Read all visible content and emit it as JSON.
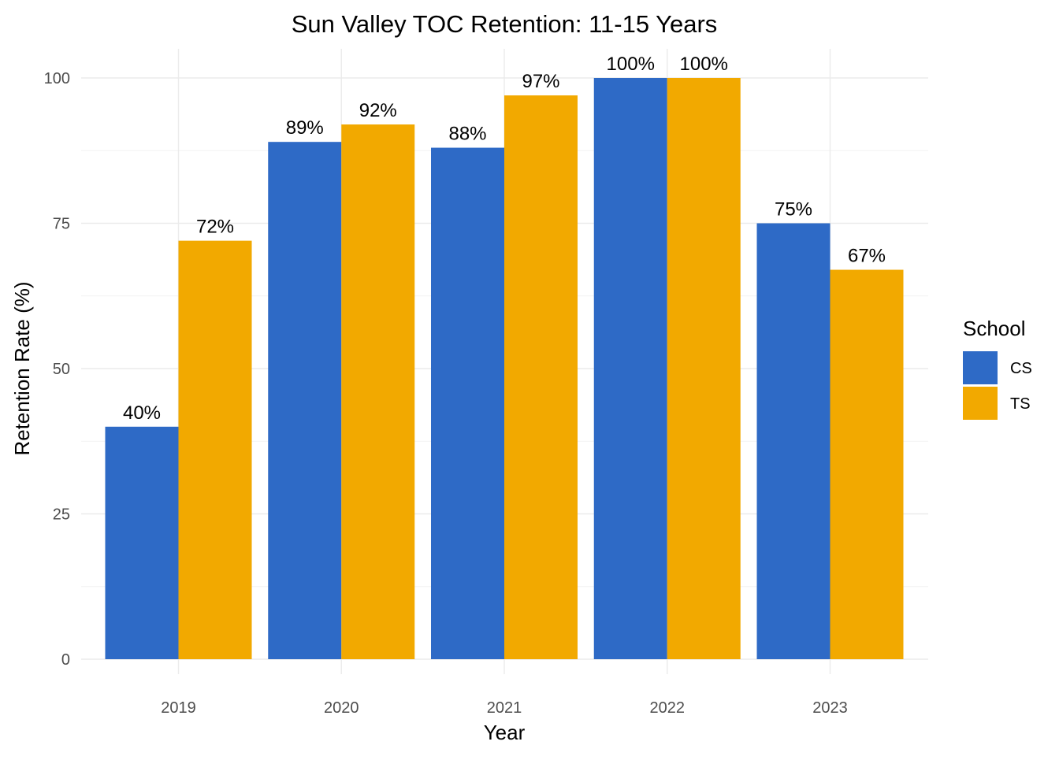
{
  "chart_data": {
    "type": "bar",
    "title": "Sun Valley TOC Retention: 11-15 Years",
    "xlabel": "Year",
    "ylabel": "Retention Rate (%)",
    "categories": [
      "2019",
      "2020",
      "2021",
      "2022",
      "2023"
    ],
    "series": [
      {
        "name": "CS",
        "color": "#2E6AC6",
        "values": [
          40,
          89,
          88,
          100,
          75
        ],
        "labels": [
          "40%",
          "89%",
          "88%",
          "100%",
          "75%"
        ]
      },
      {
        "name": "TS",
        "color": "#F2A900",
        "values": [
          72,
          92,
          97,
          100,
          67
        ],
        "labels": [
          "72%",
          "92%",
          "97%",
          "100%",
          "67%"
        ]
      }
    ],
    "ylim": [
      0,
      100
    ],
    "y_ticks": [
      "0",
      "25",
      "50",
      "75",
      "100"
    ],
    "grid": true,
    "legend": {
      "title": "School",
      "position": "right"
    }
  }
}
